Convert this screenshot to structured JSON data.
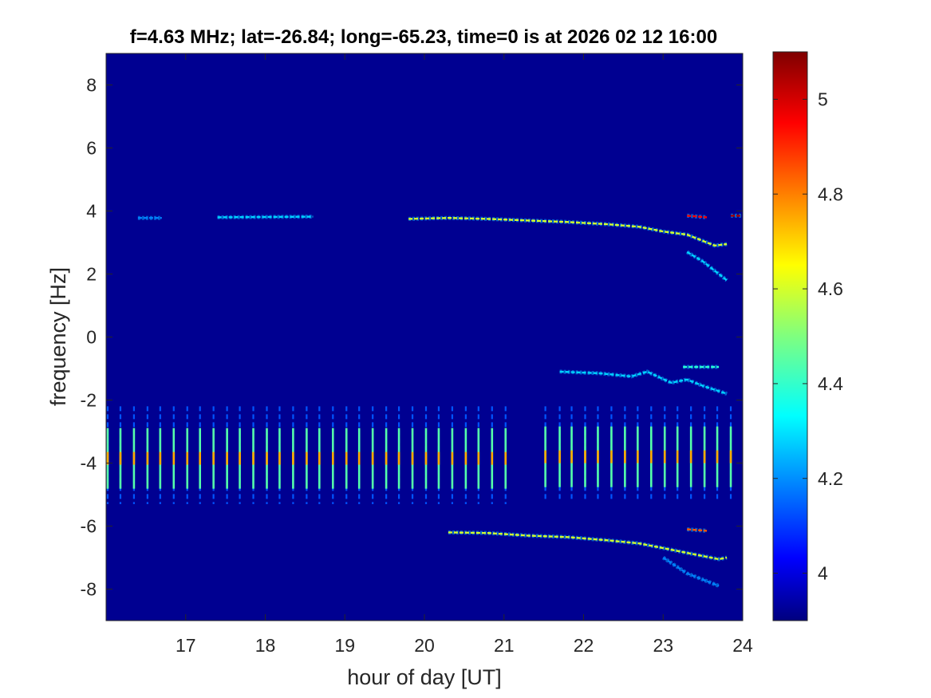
{
  "chart_data": {
    "type": "heatmap",
    "title": "f=4.63 MHz;  lat=-26.84; long=-65.23, time=0 is at 2026 02 12 16:00",
    "xlabel": "hour of day [UT]",
    "ylabel": "frequency [Hz]",
    "xlim": [
      16,
      24
    ],
    "ylim": [
      -9,
      9
    ],
    "x_ticks": [
      17,
      18,
      19,
      20,
      21,
      22,
      23,
      24
    ],
    "y_ticks": [
      8,
      6,
      4,
      2,
      0,
      -2,
      -4,
      -6,
      -8
    ],
    "colorbar": {
      "range": [
        3.9,
        5.1
      ],
      "ticks": [
        5,
        4.8,
        4.6,
        4.4,
        4.2,
        4
      ],
      "colormap": "jet"
    },
    "background_value": 3.92,
    "traces": [
      {
        "x": [
          16.4,
          16.7
        ],
        "y": [
          3.78,
          3.78
        ],
        "value": 4.2
      },
      {
        "x": [
          17.4,
          18.6
        ],
        "y": [
          3.8,
          3.82
        ],
        "value": 4.3
      },
      {
        "x": [
          19.8,
          20.3,
          20.8,
          21.3,
          21.8,
          22.3,
          22.7,
          23.0,
          23.3,
          23.5,
          23.65,
          23.8
        ],
        "y": [
          3.75,
          3.78,
          3.75,
          3.7,
          3.65,
          3.58,
          3.5,
          3.35,
          3.25,
          3.05,
          2.9,
          2.95
        ],
        "value": 4.6
      },
      {
        "x": [
          23.3,
          23.55
        ],
        "y": [
          3.85,
          3.8
        ],
        "value": 4.95
      },
      {
        "x": [
          23.85,
          23.99
        ],
        "y": [
          3.85,
          3.85
        ],
        "value": 5.05
      },
      {
        "x": [
          23.3,
          23.5,
          23.7,
          23.8
        ],
        "y": [
          2.7,
          2.4,
          2.0,
          1.8
        ],
        "value": 4.3
      },
      {
        "x": [
          21.7,
          22.2,
          22.6,
          22.8,
          23.1,
          23.3,
          23.5,
          23.8
        ],
        "y": [
          -1.1,
          -1.15,
          -1.25,
          -1.1,
          -1.45,
          -1.35,
          -1.55,
          -1.8
        ],
        "value": 4.3
      },
      {
        "x": [
          23.25,
          23.7
        ],
        "y": [
          -0.95,
          -0.95
        ],
        "value": 4.4
      },
      {
        "x": [
          20.3,
          20.8,
          21.3,
          21.8,
          22.3,
          22.7,
          23.0,
          23.3,
          23.5,
          23.7,
          23.8
        ],
        "y": [
          -6.2,
          -6.22,
          -6.3,
          -6.35,
          -6.45,
          -6.55,
          -6.7,
          -6.85,
          -6.95,
          -7.05,
          -7.0
        ],
        "value": 4.6
      },
      {
        "x": [
          23.3,
          23.55
        ],
        "y": [
          -6.1,
          -6.15
        ],
        "value": 4.85
      },
      {
        "x": [
          23.0,
          23.3,
          23.5,
          23.7
        ],
        "y": [
          -7.0,
          -7.5,
          -7.7,
          -7.9
        ],
        "value": 4.2
      }
    ],
    "stripes_block1": {
      "x": [
        16.02,
        16.18,
        16.35,
        16.52,
        16.68,
        16.85,
        17.02,
        17.18,
        17.35,
        17.52,
        17.68,
        17.85,
        18.02,
        18.18,
        18.35,
        18.52,
        18.68,
        18.85,
        19.02,
        19.18,
        19.35,
        19.52,
        19.68,
        19.85,
        20.02,
        20.18,
        20.35,
        20.52,
        20.68,
        20.85,
        21.02
      ],
      "y_range": [
        -5.3,
        -2.2
      ],
      "value": 4.45
    },
    "stripes_block2": {
      "x": [
        21.52,
        21.7,
        21.85,
        22.02,
        22.18,
        22.35,
        22.52,
        22.68,
        22.85,
        23.02,
        23.18,
        23.35,
        23.52,
        23.68,
        23.85
      ],
      "y_range": [
        -5.2,
        -2.2
      ],
      "value": 4.45
    }
  }
}
